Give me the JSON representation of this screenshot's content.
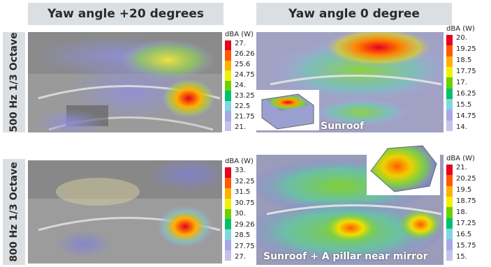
{
  "headers": [
    "Yaw angle +20 degrees",
    "Yaw angle 0 degree"
  ],
  "row_labels": [
    "500 Hz 1/3 Octave",
    "800 Hz 1/3 Octave"
  ],
  "panels": [
    {
      "scale_title": "dBA (W)",
      "ticks": [
        "27.",
        "26.26",
        "25.6",
        "24.75",
        "24.",
        "23.25",
        "22.5",
        "21.75",
        "21."
      ],
      "caption": ""
    },
    {
      "scale_title": "dBA (W)",
      "ticks": [
        "20.",
        "19.25",
        "18.5",
        "17.75",
        "17.",
        "16.25",
        "15.5",
        "14.75",
        "14."
      ],
      "caption": "Sunroof"
    },
    {
      "scale_title": "dBA (W)",
      "ticks": [
        "33.",
        "32.25",
        "31.5",
        "30.75",
        "30.",
        "29.26",
        "28.5",
        "27.75",
        "27."
      ],
      "caption": ""
    },
    {
      "scale_title": "dBA (W)",
      "ticks": [
        "21.",
        "20.25",
        "19.5",
        "18.75",
        "18.",
        "17.25",
        "16.5",
        "15.75",
        "15."
      ],
      "caption": "Sunroof + A pillar near mirror"
    }
  ],
  "colors": {
    "scale": [
      "#e8001c",
      "#ff5a00",
      "#ffb000",
      "#f0f000",
      "#6cd000",
      "#00c070",
      "#7fd8e0",
      "#a8a8e8",
      "#c8c0e8"
    ]
  }
}
